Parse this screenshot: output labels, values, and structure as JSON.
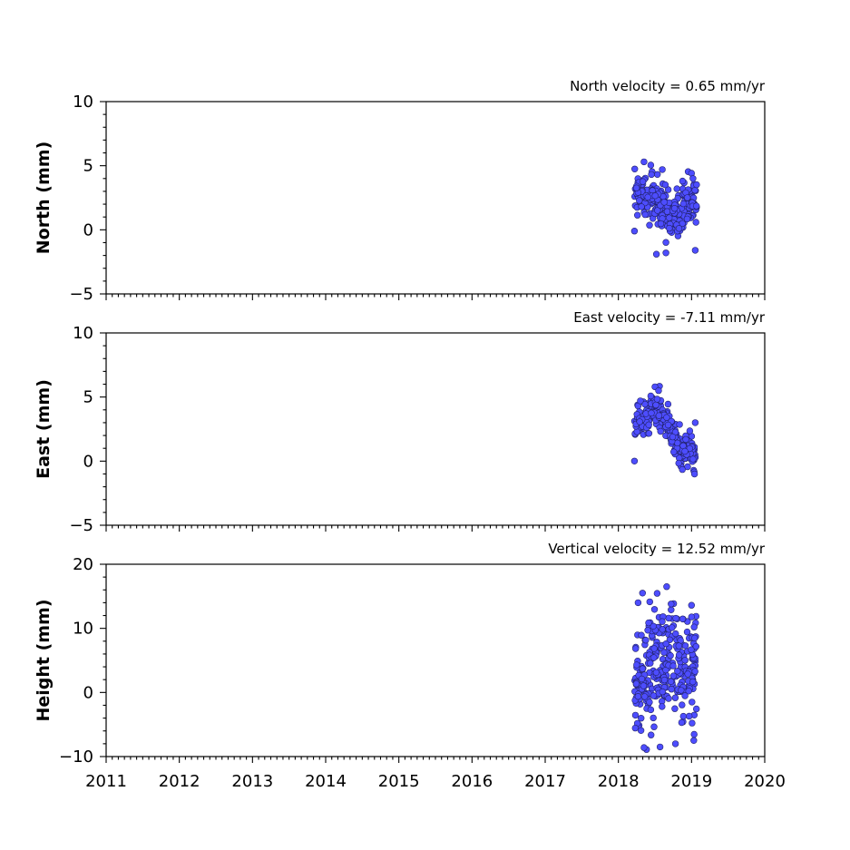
{
  "chart_data": [
    {
      "type": "scatter",
      "title": "North velocity = 0.65 mm/yr",
      "ylabel": "North (mm)",
      "ylim": [
        -5,
        10
      ],
      "yticks": [
        -5,
        0,
        5,
        10
      ],
      "xlim": [
        2011,
        2020
      ],
      "xticks": [],
      "marker_color": "#4d4dff",
      "series": [
        {
          "x_range": [
            2018.22,
            2019.07
          ],
          "points": 300,
          "trend": [
            [
              2018.22,
              3.0
            ],
            [
              2018.45,
              2.7
            ],
            [
              2018.7,
              0.9
            ],
            [
              2019.07,
              2.3
            ]
          ],
          "spread": 0.9,
          "samples": [
            [
              2018.22,
              -0.1
            ],
            [
              2018.35,
              5.3
            ],
            [
              2018.52,
              -1.9
            ],
            [
              2018.6,
              4.7
            ],
            [
              2018.65,
              -1.8
            ],
            [
              2019.05,
              -1.6
            ],
            [
              2019.02,
              4.0
            ],
            [
              2018.8,
              3.2
            ]
          ]
        }
      ]
    },
    {
      "type": "scatter",
      "title": "East velocity = -7.11 mm/yr",
      "ylabel": "East (mm)",
      "ylim": [
        -5,
        10
      ],
      "yticks": [
        -5,
        0,
        5,
        10
      ],
      "xlim": [
        2011,
        2020
      ],
      "xticks": [],
      "marker_color": "#4d4dff",
      "series": [
        {
          "x_range": [
            2018.22,
            2019.07
          ],
          "points": 300,
          "trend": [
            [
              2018.22,
              2.5
            ],
            [
              2018.5,
              4.2
            ],
            [
              2018.62,
              3.5
            ],
            [
              2018.8,
              1.2
            ],
            [
              2019.07,
              0.3
            ]
          ],
          "spread": 0.6,
          "samples": [
            [
              2018.22,
              0.0
            ],
            [
              2018.5,
              5.8
            ],
            [
              2018.55,
              5.5
            ],
            [
              2019.05,
              3.0
            ],
            [
              2019.04,
              -1.0
            ],
            [
              2018.3,
              4.7
            ]
          ]
        }
      ]
    },
    {
      "type": "scatter",
      "title": "Vertical velocity = 12.52 mm/yr",
      "ylabel": "Height (mm)",
      "ylim": [
        -10,
        20
      ],
      "yticks": [
        -10,
        0,
        10,
        20
      ],
      "xlim": [
        2011,
        2020
      ],
      "xticks": [
        2011,
        2012,
        2013,
        2014,
        2015,
        2016,
        2017,
        2018,
        2019,
        2020
      ],
      "marker_color": "#4d4dff",
      "series": [
        {
          "x_range": [
            2018.22,
            2019.07
          ],
          "points": 300,
          "trend": [
            [
              2018.22,
              0.5
            ],
            [
              2018.5,
              3.5
            ],
            [
              2018.7,
              5.0
            ],
            [
              2018.9,
              3.5
            ],
            [
              2019.07,
              2.5
            ]
          ],
          "spread": 4.2,
          "samples": [
            [
              2018.66,
              16.5
            ],
            [
              2018.35,
              -8.6
            ],
            [
              2018.57,
              -8.5
            ],
            [
              2018.78,
              -8.0
            ],
            [
              2019.03,
              -7.5
            ],
            [
              2018.27,
              14.0
            ],
            [
              2018.33,
              15.5
            ],
            [
              2019.0,
              13.6
            ]
          ]
        }
      ]
    }
  ]
}
